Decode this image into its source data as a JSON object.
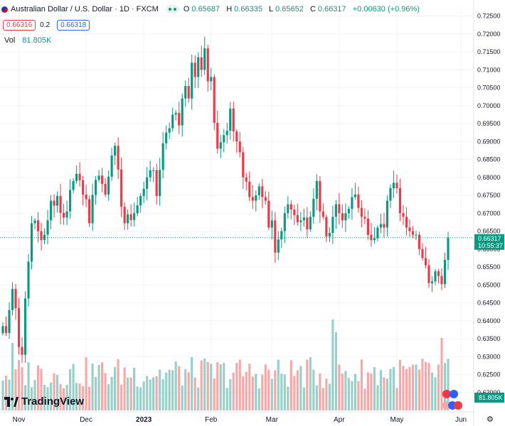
{
  "legend": {
    "symbol": "Australian Dollar / U.S. Dollar · 1D · FXCM",
    "ohlc": [
      {
        "k": "O",
        "v": "0.65687"
      },
      {
        "k": "H",
        "v": "0.66335"
      },
      {
        "k": "L",
        "v": "0.65652"
      },
      {
        "k": "C",
        "v": "0.66317"
      }
    ],
    "change": "+0.00630 (+0.96%)",
    "sell_price": "0.66316",
    "spread": "0.2",
    "buy_price": "0.66318",
    "volume_label": "Vol",
    "volume_value": "81.805K"
  },
  "watermark": "TradingView",
  "last_price": {
    "value": "0.66317",
    "countdown": "10:55:37"
  },
  "volume_tag": "81.805K",
  "colors": {
    "up": "#089981",
    "down": "#f23645",
    "up_vol": "#97d0c8",
    "down_vol": "#f6a8a8",
    "grid": "#f0f3fa"
  },
  "chart_data": {
    "type": "candlestick",
    "symbol": "AUD/USD",
    "interval": "1D",
    "y_axis": {
      "min": 0.615,
      "max": 0.7275,
      "ticks": [
        "0.72500",
        "0.72000",
        "0.71500",
        "0.71000",
        "0.70500",
        "0.70000",
        "0.69500",
        "0.69000",
        "0.68500",
        "0.68000",
        "0.67500",
        "0.67000",
        "0.66500",
        "0.66000",
        "0.65500",
        "0.65000",
        "0.64500",
        "0.64000",
        "0.63500",
        "0.63000",
        "0.62500",
        "0.62000"
      ]
    },
    "x_axis": {
      "labels": [
        "Nov",
        "Dec",
        "2023",
        "Feb",
        "Mar",
        "Apr",
        "May",
        "Jun"
      ],
      "label_index": [
        5,
        26,
        44,
        65,
        84,
        105,
        123,
        143
      ]
    },
    "closes": [
      0.6385,
      0.6366,
      0.643,
      0.6489,
      0.6435,
      0.6327,
      0.6305,
      0.6462,
      0.6565,
      0.6672,
      0.668,
      0.665,
      0.6625,
      0.664,
      0.668,
      0.6735,
      0.6721,
      0.6748,
      0.6701,
      0.6688,
      0.6705,
      0.6765,
      0.679,
      0.681,
      0.6792,
      0.6752,
      0.6739,
      0.6672,
      0.6751,
      0.6793,
      0.6805,
      0.6782,
      0.6752,
      0.6802,
      0.6861,
      0.6888,
      0.6822,
      0.6718,
      0.6672,
      0.6697,
      0.6681,
      0.67,
      0.6722,
      0.6748,
      0.6768,
      0.68,
      0.682,
      0.682,
      0.6748,
      0.6821,
      0.6895,
      0.6925,
      0.6937,
      0.6975,
      0.698,
      0.6945,
      0.702,
      0.7055,
      0.702,
      0.712,
      0.708,
      0.7135,
      0.71,
      0.716,
      0.7068,
      0.708,
      0.6952,
      0.688,
      0.6898,
      0.6918,
      0.693,
      0.6992,
      0.6928,
      0.69,
      0.687,
      0.68,
      0.6788,
      0.6745,
      0.6735,
      0.675,
      0.6775,
      0.6745,
      0.6735,
      0.666,
      0.668,
      0.659,
      0.6627,
      0.665,
      0.67,
      0.6725,
      0.671,
      0.6695,
      0.6675,
      0.668,
      0.6688,
      0.6655,
      0.669,
      0.674,
      0.679,
      0.6705,
      0.669,
      0.6635,
      0.6645,
      0.669,
      0.6725,
      0.67,
      0.668,
      0.67,
      0.6712,
      0.6745,
      0.6752,
      0.6715,
      0.669,
      0.6685,
      0.664,
      0.6625,
      0.663,
      0.666,
      0.667,
      0.666,
      0.6735,
      0.677,
      0.6785,
      0.677,
      0.67,
      0.669,
      0.666,
      0.665,
      0.664,
      0.664,
      0.66,
      0.6575,
      0.6555,
      0.6505,
      0.651,
      0.6538,
      0.6525,
      0.6502,
      0.657,
      0.6632
    ]
  }
}
